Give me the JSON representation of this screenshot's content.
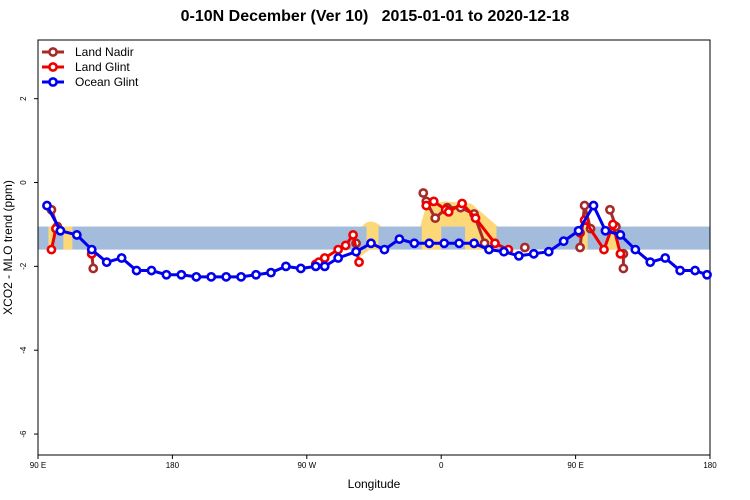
{
  "title": "0-10N December (Ver 10)   2015-01-01 to 2020-12-18",
  "chart_data": {
    "type": "line",
    "title": "0-10N December (Ver 10)   2015-01-01 to 2020-12-18",
    "xlabel": "Longitude",
    "ylabel": "XCO2 - MLO trend (ppm)",
    "xlim": [
      90,
      540
    ],
    "ylim": [
      -6.5,
      3.4
    ],
    "xticks": [
      {
        "value": 90,
        "label": "90 E"
      },
      {
        "value": 180,
        "label": "180"
      },
      {
        "value": 270,
        "label": "90 W"
      },
      {
        "value": 360,
        "label": "0"
      },
      {
        "value": 450,
        "label": "90 E"
      },
      {
        "value": 540,
        "label": "180"
      }
    ],
    "yticks": [
      2,
      0,
      -2,
      -4,
      -6
    ],
    "legend_position": "top-left",
    "background_band": {
      "ymin": -1.6,
      "ymax": -1.05,
      "ocean_color": "#a4bcdc",
      "land_color": "#fcd878"
    },
    "series": [
      {
        "name": "Land Nadir",
        "color": "#a52a2a",
        "segments": [
          {
            "x": [
              99,
              103
            ],
            "y": [
              -0.65,
              -1.05
            ]
          },
          {
            "x": [
              126,
              127
            ],
            "y": [
              -1.7,
              -2.05
            ]
          },
          {
            "x": [
              303
            ],
            "y": [
              -1.45
            ]
          },
          {
            "x": [
              348,
              350,
              356,
              364,
              373,
              382,
              389
            ],
            "y": [
              -0.25,
              -0.45,
              -0.85,
              -0.6,
              -0.6,
              -0.75,
              -1.45
            ]
          },
          {
            "x": [
              416
            ],
            "y": [
              -1.55
            ]
          },
          {
            "x": [
              453,
              456,
              460
            ],
            "y": [
              -1.55,
              -0.55,
              -1.1
            ]
          },
          {
            "x": [
              473,
              477
            ],
            "y": [
              -0.65,
              -1.05
            ]
          },
          {
            "x": [
              482,
              482
            ],
            "y": [
              -1.7,
              -2.05
            ]
          }
        ]
      },
      {
        "name": "Land Glint",
        "color": "#ee0000",
        "segments": [
          {
            "x": [
              99,
              102
            ],
            "y": [
              -1.6,
              -1.1
            ]
          },
          {
            "x": [
              126
            ],
            "y": [
              -1.7
            ]
          },
          {
            "x": [
              276,
              278,
              282,
              291,
              296,
              301,
              305
            ],
            "y": [
              -1.95,
              -1.9,
              -1.8,
              -1.6,
              -1.5,
              -1.25,
              -1.9
            ]
          },
          {
            "x": [
              350,
              355,
              363,
              365,
              374,
              383,
              396,
              405
            ],
            "y": [
              -0.55,
              -0.45,
              -0.65,
              -0.7,
              -0.5,
              -0.85,
              -1.45,
              -1.6
            ]
          },
          {
            "x": [
              453,
              456,
              469,
              475,
              480
            ],
            "y": [
              -1.2,
              -0.9,
              -1.6,
              -1.0,
              -1.7
            ]
          }
        ]
      },
      {
        "name": "Ocean Glint",
        "color": "#0000ee",
        "segments": [
          {
            "x": [
              96,
              105,
              116,
              126,
              136,
              146,
              156,
              166,
              176,
              186,
              196,
              206,
              216,
              226,
              236,
              246,
              256,
              266,
              276,
              282,
              291,
              303,
              313,
              322,
              332,
              342,
              352,
              362,
              372,
              382,
              392,
              402,
              412,
              422,
              432,
              442,
              452,
              462,
              470,
              480,
              490,
              500,
              510,
              520,
              530,
              538
            ],
            "y": [
              -0.55,
              -1.15,
              -1.25,
              -1.6,
              -1.9,
              -1.8,
              -2.1,
              -2.1,
              -2.2,
              -2.2,
              -2.25,
              -2.25,
              -2.25,
              -2.25,
              -2.2,
              -2.15,
              -2.0,
              -2.05,
              -2.0,
              -2.0,
              -1.8,
              -1.65,
              -1.45,
              -1.6,
              -1.35,
              -1.45,
              -1.45,
              -1.45,
              -1.45,
              -1.45,
              -1.6,
              -1.65,
              -1.75,
              -1.7,
              -1.65,
              -1.4,
              -1.15,
              -0.55,
              -1.15,
              -1.25,
              -1.6,
              -1.9,
              -1.8,
              -2.1,
              -2.1,
              -2.2
            ]
          }
        ]
      }
    ]
  }
}
